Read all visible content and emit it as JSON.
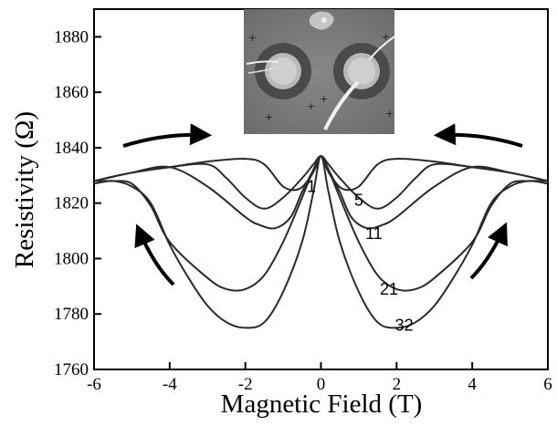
{
  "chart_data": {
    "type": "line",
    "title": "",
    "xlabel": "Magnetic Field (T)",
    "ylabel": "Resistivity (Ω)",
    "xlim": [
      -6,
      6
    ],
    "ylim": [
      1760,
      1890
    ],
    "xticks": [
      -6,
      -4,
      -2,
      0,
      2,
      4,
      6
    ],
    "yticks": [
      1760,
      1780,
      1800,
      1820,
      1840,
      1860,
      1880
    ],
    "grid": false,
    "legend": "none",
    "line_color": "#2a2a2a",
    "series": [
      {
        "label": "1",
        "x": [
          -6,
          -5,
          -4,
          -3,
          -2,
          -1.5,
          -1,
          -0.6,
          -0.3,
          -0.1,
          0,
          0.1,
          0.3,
          0.6,
          1,
          1.5,
          2,
          3,
          4,
          5,
          6
        ],
        "y": [
          1828,
          1831,
          1833,
          1835,
          1836,
          1834,
          1826,
          1825,
          1829,
          1834,
          1837,
          1834,
          1829,
          1825,
          1826,
          1834,
          1836,
          1835,
          1833,
          1831,
          1828
        ]
      },
      {
        "label": "5",
        "x": [
          -6,
          -5,
          -4,
          -3,
          -2.5,
          -2,
          -1.5,
          -1,
          -0.5,
          -0.2,
          0,
          0.2,
          0.5,
          1,
          1.5,
          2,
          2.5,
          3,
          4,
          5,
          6
        ],
        "y": [
          1828,
          1831,
          1833,
          1834,
          1829,
          1822,
          1818,
          1822,
          1829,
          1834,
          1837,
          1834,
          1829,
          1822,
          1818,
          1822,
          1829,
          1834,
          1833,
          1831,
          1828
        ]
      },
      {
        "label": "11",
        "x": [
          -6,
          -5,
          -4,
          -3,
          -2,
          -1.6,
          -1.2,
          -0.8,
          -0.5,
          -0.2,
          0,
          0.2,
          0.5,
          0.8,
          1.2,
          1.6,
          2,
          3,
          4,
          5,
          6
        ],
        "y": [
          1828,
          1831,
          1833,
          1826,
          1815,
          1812,
          1811,
          1815,
          1824,
          1832,
          1837,
          1832,
          1824,
          1815,
          1811,
          1812,
          1815,
          1826,
          1833,
          1831,
          1828
        ]
      },
      {
        "label": "21",
        "x": [
          -6,
          -5.5,
          -5,
          -4.5,
          -4,
          -3,
          -2.5,
          -2,
          -1.5,
          -1,
          -0.5,
          -0.2,
          0,
          0.2,
          0.5,
          1,
          1.5,
          2,
          2.5,
          3,
          4,
          4.5,
          5,
          5.5,
          6
        ],
        "y": [
          1828,
          1828,
          1827,
          1819,
          1806,
          1793,
          1789,
          1789,
          1794,
          1806,
          1822,
          1832,
          1837,
          1832,
          1822,
          1806,
          1794,
          1789,
          1789,
          1793,
          1806,
          1819,
          1827,
          1828,
          1828
        ]
      },
      {
        "label": "32",
        "x": [
          -6,
          -5.5,
          -5,
          -4.5,
          -4,
          -3.5,
          -3,
          -2.5,
          -2,
          -1.5,
          -1,
          -0.5,
          -0.2,
          0,
          0.2,
          0.5,
          1,
          1.5,
          2,
          2.5,
          3,
          3.5,
          4,
          4.5,
          5,
          5.5,
          6
        ],
        "y": [
          1827,
          1828,
          1826,
          1820,
          1805,
          1793,
          1783,
          1777,
          1775,
          1777,
          1788,
          1806,
          1824,
          1837,
          1824,
          1806,
          1788,
          1777,
          1775,
          1777,
          1783,
          1793,
          1805,
          1820,
          1826,
          1828,
          1827
        ]
      }
    ],
    "annotations": [
      "1",
      "5",
      "11",
      "21",
      "32"
    ],
    "arrows": [
      "top-left pointing right",
      "top-right pointing left",
      "bottom-left pointing up",
      "bottom-right pointing up"
    ],
    "inset": "micrograph-of-two-ring-electrodes"
  }
}
